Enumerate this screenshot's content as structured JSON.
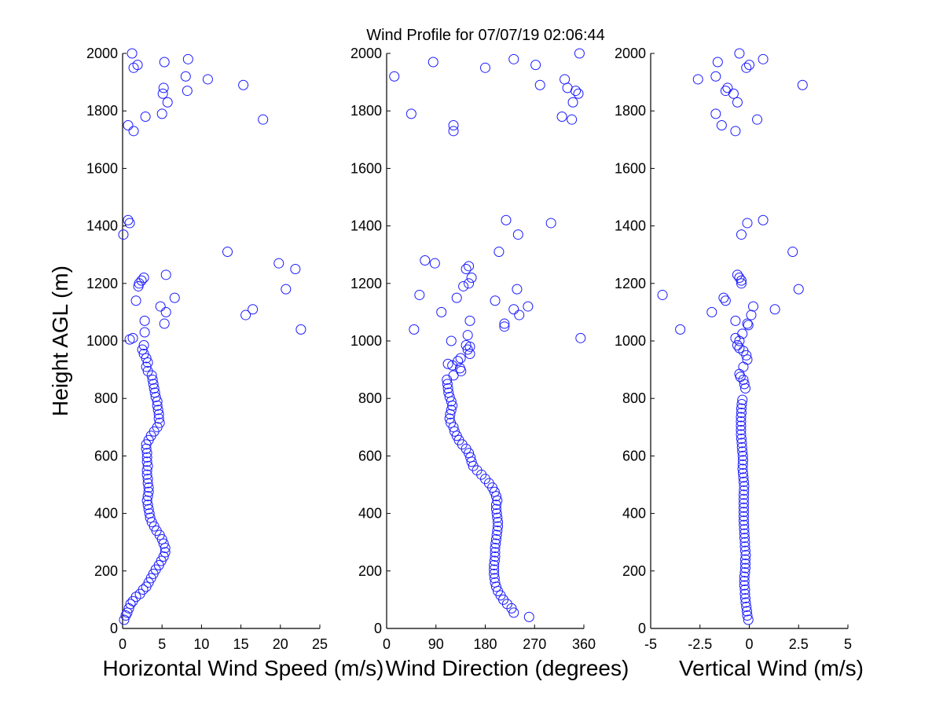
{
  "figure": {
    "title": "Wind Profile for  07/07/19 02:06:44",
    "ylabel": "Height AGL (m)",
    "marker_color": "#1a1aff"
  },
  "chart_data": [
    {
      "type": "scatter",
      "xlabel": "Horizontal Wind Speed (m/s)",
      "ylabel": "Height AGL (m)",
      "xlim": [
        0,
        25
      ],
      "ylim": [
        0,
        2000
      ],
      "xticks": [
        0,
        5,
        10,
        15,
        20,
        25
      ],
      "xtick_labels": [
        "0",
        "5",
        "10",
        "15",
        "20",
        "25"
      ],
      "yticks": [
        0,
        200,
        400,
        600,
        800,
        1000,
        1200,
        1400,
        1600,
        1800,
        2000
      ],
      "ytick_labels": [
        "0",
        "200",
        "400",
        "600",
        "800",
        "1000",
        "1200",
        "1400",
        "1600",
        "1800",
        "2000"
      ],
      "points": [
        [
          0.2,
          30
        ],
        [
          0.4,
          45
        ],
        [
          0.6,
          55
        ],
        [
          0.8,
          70
        ],
        [
          1.0,
          85
        ],
        [
          1.3,
          95
        ],
        [
          1.7,
          110
        ],
        [
          2.2,
          120
        ],
        [
          2.6,
          135
        ],
        [
          3.0,
          145
        ],
        [
          3.3,
          160
        ],
        [
          3.6,
          175
        ],
        [
          3.9,
          190
        ],
        [
          4.2,
          205
        ],
        [
          4.6,
          220
        ],
        [
          4.9,
          235
        ],
        [
          5.2,
          250
        ],
        [
          5.4,
          265
        ],
        [
          5.4,
          280
        ],
        [
          5.2,
          295
        ],
        [
          5.0,
          310
        ],
        [
          4.7,
          325
        ],
        [
          4.3,
          340
        ],
        [
          4.0,
          355
        ],
        [
          3.7,
          370
        ],
        [
          3.5,
          385
        ],
        [
          3.4,
          400
        ],
        [
          3.3,
          415
        ],
        [
          3.2,
          430
        ],
        [
          3.1,
          445
        ],
        [
          3.2,
          460
        ],
        [
          3.3,
          475
        ],
        [
          3.3,
          490
        ],
        [
          3.2,
          505
        ],
        [
          3.2,
          520
        ],
        [
          3.1,
          535
        ],
        [
          3.1,
          550
        ],
        [
          3.2,
          565
        ],
        [
          3.1,
          580
        ],
        [
          3.1,
          595
        ],
        [
          3.1,
          610
        ],
        [
          3.0,
          625
        ],
        [
          3.0,
          640
        ],
        [
          3.3,
          655
        ],
        [
          3.6,
          670
        ],
        [
          4.0,
          685
        ],
        [
          4.4,
          700
        ],
        [
          4.7,
          715
        ],
        [
          4.6,
          730
        ],
        [
          4.6,
          745
        ],
        [
          4.5,
          760
        ],
        [
          4.4,
          775
        ],
        [
          4.4,
          790
        ],
        [
          4.2,
          805
        ],
        [
          4.1,
          820
        ],
        [
          4.0,
          835
        ],
        [
          3.9,
          850
        ],
        [
          3.8,
          865
        ],
        [
          3.7,
          880
        ],
        [
          3.2,
          895
        ],
        [
          3.0,
          910
        ],
        [
          3.2,
          925
        ],
        [
          3.0,
          940
        ],
        [
          2.7,
          955
        ],
        [
          2.5,
          970
        ],
        [
          2.7,
          985
        ],
        [
          1.3,
          1010
        ],
        [
          0.9,
          1005
        ],
        [
          2.8,
          1030
        ],
        [
          2.8,
          1070
        ],
        [
          5.3,
          1060
        ],
        [
          5.5,
          1100
        ],
        [
          4.8,
          1120
        ],
        [
          6.6,
          1150
        ],
        [
          1.7,
          1140
        ],
        [
          5.5,
          1230
        ],
        [
          2.7,
          1220
        ],
        [
          2.4,
          1210
        ],
        [
          2.1,
          1200
        ],
        [
          2.0,
          1190
        ],
        [
          15.6,
          1090
        ],
        [
          16.5,
          1110
        ],
        [
          22.6,
          1040
        ],
        [
          20.7,
          1180
        ],
        [
          21.9,
          1250
        ],
        [
          19.8,
          1270
        ],
        [
          13.3,
          1310
        ],
        [
          0.1,
          1370
        ],
        [
          0.9,
          1410
        ],
        [
          0.7,
          1420
        ],
        [
          1.4,
          1730
        ],
        [
          0.7,
          1750
        ],
        [
          2.9,
          1780
        ],
        [
          5.0,
          1790
        ],
        [
          5.7,
          1830
        ],
        [
          5.1,
          1860
        ],
        [
          8.2,
          1870
        ],
        [
          5.2,
          1880
        ],
        [
          15.3,
          1890
        ],
        [
          8.0,
          1920
        ],
        [
          10.8,
          1910
        ],
        [
          1.4,
          1950
        ],
        [
          1.9,
          1960
        ],
        [
          5.3,
          1970
        ],
        [
          8.3,
          1980
        ],
        [
          1.2,
          2000
        ],
        [
          17.8,
          1770
        ]
      ]
    },
    {
      "type": "scatter",
      "xlabel": "Wind Direction (degrees)",
      "ylabel": "",
      "xlim": [
        0,
        360
      ],
      "ylim": [
        0,
        2000
      ],
      "xticks": [
        0,
        90,
        180,
        270,
        360
      ],
      "xtick_labels": [
        "0",
        "90",
        "180",
        "270",
        "360"
      ],
      "yticks": [
        0,
        200,
        400,
        600,
        800,
        1000,
        1200,
        1400,
        1600,
        1800,
        2000
      ],
      "ytick_labels": [
        "0",
        "200",
        "400",
        "600",
        "800",
        "1000",
        "1200",
        "1400",
        "1600",
        "1800",
        "2000"
      ],
      "points": [
        [
          260,
          40
        ],
        [
          232,
          55
        ],
        [
          228,
          70
        ],
        [
          220,
          85
        ],
        [
          213,
          100
        ],
        [
          208,
          115
        ],
        [
          203,
          130
        ],
        [
          200,
          145
        ],
        [
          198,
          160
        ],
        [
          197,
          175
        ],
        [
          196,
          190
        ],
        [
          196,
          205
        ],
        [
          196,
          220
        ],
        [
          197,
          235
        ],
        [
          198,
          250
        ],
        [
          198,
          265
        ],
        [
          198,
          280
        ],
        [
          199,
          295
        ],
        [
          200,
          310
        ],
        [
          201,
          325
        ],
        [
          202,
          340
        ],
        [
          203,
          355
        ],
        [
          203,
          370
        ],
        [
          202,
          385
        ],
        [
          201,
          400
        ],
        [
          200,
          415
        ],
        [
          200,
          430
        ],
        [
          202,
          445
        ],
        [
          200,
          460
        ],
        [
          197,
          475
        ],
        [
          193,
          490
        ],
        [
          187,
          505
        ],
        [
          180,
          520
        ],
        [
          173,
          535
        ],
        [
          165,
          550
        ],
        [
          158,
          565
        ],
        [
          155,
          580
        ],
        [
          153,
          595
        ],
        [
          150,
          610
        ],
        [
          145,
          625
        ],
        [
          138,
          640
        ],
        [
          132,
          655
        ],
        [
          128,
          670
        ],
        [
          124,
          685
        ],
        [
          122,
          700
        ],
        [
          117,
          715
        ],
        [
          115,
          730
        ],
        [
          116,
          745
        ],
        [
          118,
          760
        ],
        [
          120,
          775
        ],
        [
          118,
          790
        ],
        [
          115,
          805
        ],
        [
          113,
          820
        ],
        [
          112,
          835
        ],
        [
          111,
          850
        ],
        [
          110,
          865
        ],
        [
          122,
          880
        ],
        [
          136,
          895
        ],
        [
          134,
          905
        ],
        [
          120,
          915
        ],
        [
          112,
          920
        ],
        [
          130,
          930
        ],
        [
          135,
          940
        ],
        [
          152,
          955
        ],
        [
          148,
          970
        ],
        [
          145,
          985
        ],
        [
          152,
          980
        ],
        [
          118,
          1000
        ],
        [
          148,
          1020
        ],
        [
          152,
          1070
        ],
        [
          215,
          1050
        ],
        [
          215,
          1060
        ],
        [
          242,
          1090
        ],
        [
          232,
          1110
        ],
        [
          258,
          1120
        ],
        [
          198,
          1140
        ],
        [
          128,
          1150
        ],
        [
          60,
          1160
        ],
        [
          140,
          1190
        ],
        [
          150,
          1200
        ],
        [
          155,
          1220
        ],
        [
          145,
          1250
        ],
        [
          150,
          1260
        ],
        [
          88,
          1270
        ],
        [
          70,
          1280
        ],
        [
          205,
          1310
        ],
        [
          240,
          1370
        ],
        [
          218,
          1420
        ],
        [
          300,
          1410
        ],
        [
          100,
          1100
        ],
        [
          50,
          1040
        ],
        [
          354,
          1010
        ],
        [
          238,
          1180
        ],
        [
          122,
          1730
        ],
        [
          122,
          1750
        ],
        [
          45,
          1790
        ],
        [
          320,
          1780
        ],
        [
          338,
          1770
        ],
        [
          340,
          1830
        ],
        [
          345,
          1870
        ],
        [
          350,
          1860
        ],
        [
          330,
          1880
        ],
        [
          280,
          1890
        ],
        [
          325,
          1910
        ],
        [
          14,
          1920
        ],
        [
          180,
          1950
        ],
        [
          272,
          1960
        ],
        [
          85,
          1970
        ],
        [
          232,
          1980
        ],
        [
          352,
          2000
        ]
      ]
    },
    {
      "type": "scatter",
      "xlabel": "Vertical Wind (m/s)",
      "ylabel": "",
      "xlim": [
        -5,
        5
      ],
      "ylim": [
        0,
        2000
      ],
      "xticks": [
        -5,
        -2.5,
        0,
        2.5,
        5
      ],
      "xtick_labels": [
        "-5",
        "-2.5",
        "0",
        "2.5",
        "5"
      ],
      "yticks": [
        0,
        200,
        400,
        600,
        800,
        1000,
        1200,
        1400,
        1600,
        1800,
        2000
      ],
      "ytick_labels": [
        "0",
        "200",
        "400",
        "600",
        "800",
        "1000",
        "1200",
        "1400",
        "1600",
        "1800",
        "2000"
      ],
      "points": [
        [
          -0.05,
          30
        ],
        [
          -0.1,
          45
        ],
        [
          -0.12,
          60
        ],
        [
          -0.15,
          75
        ],
        [
          -0.18,
          90
        ],
        [
          -0.2,
          105
        ],
        [
          -0.22,
          120
        ],
        [
          -0.22,
          135
        ],
        [
          -0.25,
          150
        ],
        [
          -0.25,
          165
        ],
        [
          -0.25,
          180
        ],
        [
          -0.22,
          195
        ],
        [
          -0.2,
          210
        ],
        [
          -0.2,
          225
        ],
        [
          -0.2,
          240
        ],
        [
          -0.18,
          255
        ],
        [
          -0.2,
          270
        ],
        [
          -0.22,
          285
        ],
        [
          -0.22,
          300
        ],
        [
          -0.24,
          315
        ],
        [
          -0.25,
          330
        ],
        [
          -0.26,
          345
        ],
        [
          -0.27,
          360
        ],
        [
          -0.28,
          375
        ],
        [
          -0.28,
          390
        ],
        [
          -0.28,
          405
        ],
        [
          -0.28,
          420
        ],
        [
          -0.28,
          435
        ],
        [
          -0.28,
          450
        ],
        [
          -0.28,
          465
        ],
        [
          -0.27,
          480
        ],
        [
          -0.26,
          495
        ],
        [
          -0.28,
          510
        ],
        [
          -0.3,
          525
        ],
        [
          -0.32,
          540
        ],
        [
          -0.34,
          555
        ],
        [
          -0.33,
          570
        ],
        [
          -0.32,
          585
        ],
        [
          -0.33,
          600
        ],
        [
          -0.35,
          615
        ],
        [
          -0.37,
          630
        ],
        [
          -0.38,
          645
        ],
        [
          -0.4,
          660
        ],
        [
          -0.42,
          675
        ],
        [
          -0.42,
          690
        ],
        [
          -0.42,
          705
        ],
        [
          -0.42,
          720
        ],
        [
          -0.42,
          735
        ],
        [
          -0.4,
          750
        ],
        [
          -0.4,
          765
        ],
        [
          -0.38,
          780
        ],
        [
          -0.35,
          795
        ],
        [
          -0.2,
          835
        ],
        [
          -0.25,
          850
        ],
        [
          -0.3,
          865
        ],
        [
          -0.45,
          875
        ],
        [
          -0.5,
          885
        ],
        [
          -0.3,
          910
        ],
        [
          -0.1,
          935
        ],
        [
          -0.15,
          950
        ],
        [
          -0.3,
          965
        ],
        [
          -0.5,
          975
        ],
        [
          -0.6,
          985
        ],
        [
          -0.5,
          1000
        ],
        [
          -0.7,
          1010
        ],
        [
          -0.35,
          1025
        ],
        [
          -0.7,
          1070
        ],
        [
          -0.1,
          1060
        ],
        [
          -0.05,
          1055
        ],
        [
          0.1,
          1090
        ],
        [
          0.2,
          1120
        ],
        [
          -3.5,
          1040
        ],
        [
          -1.9,
          1100
        ],
        [
          -1.2,
          1140
        ],
        [
          -1.3,
          1150
        ],
        [
          -4.4,
          1160
        ],
        [
          -0.4,
          1200
        ],
        [
          -0.4,
          1210
        ],
        [
          -0.5,
          1220
        ],
        [
          -0.6,
          1230
        ],
        [
          1.3,
          1110
        ],
        [
          2.5,
          1180
        ],
        [
          2.2,
          1310
        ],
        [
          -0.4,
          1370
        ],
        [
          -0.1,
          1410
        ],
        [
          0.7,
          1420
        ],
        [
          -0.7,
          1730
        ],
        [
          -1.4,
          1750
        ],
        [
          -1.7,
          1790
        ],
        [
          0.4,
          1770
        ],
        [
          -0.6,
          1830
        ],
        [
          -1.2,
          1870
        ],
        [
          -1.1,
          1880
        ],
        [
          -0.8,
          1860
        ],
        [
          2.7,
          1890
        ],
        [
          -2.6,
          1910
        ],
        [
          -1.7,
          1920
        ],
        [
          -0.15,
          1950
        ],
        [
          0.0,
          1960
        ],
        [
          -1.6,
          1970
        ],
        [
          0.7,
          1980
        ],
        [
          -0.5,
          2000
        ]
      ]
    }
  ]
}
